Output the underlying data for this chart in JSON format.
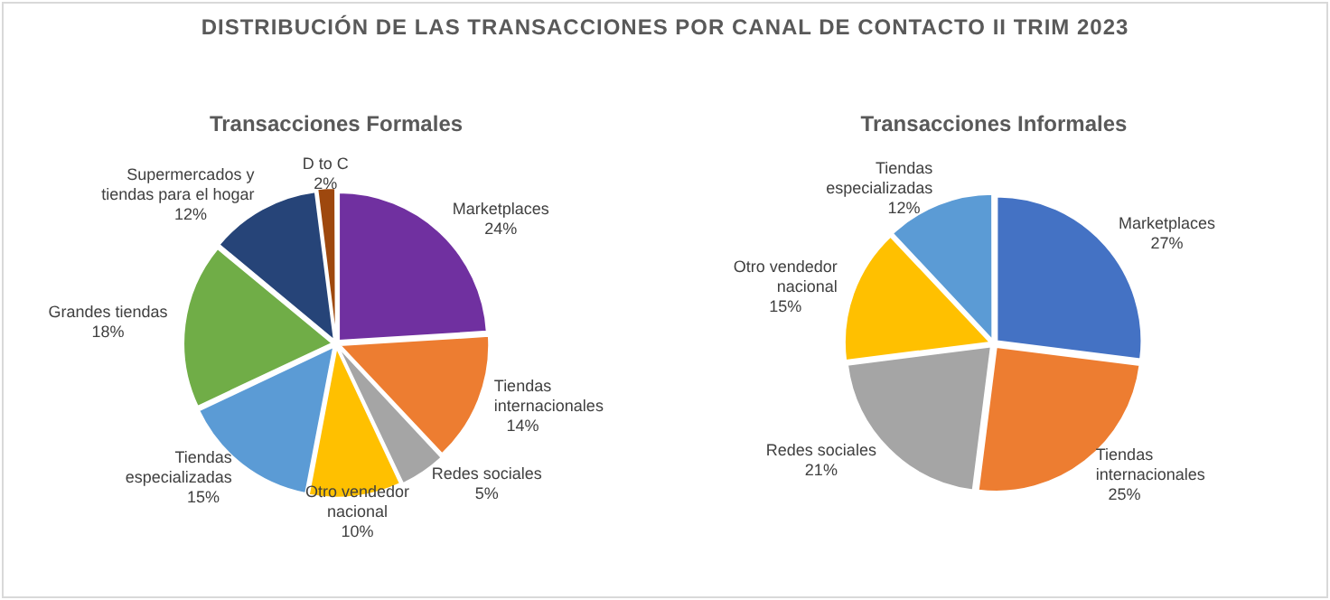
{
  "chart_data": [
    {
      "type": "pie",
      "title": "Transacciones Formales",
      "annotations": [
        "DISTRIBUCIÓN DE LAS TRANSACCIONES  POR CANAL DE CONTACTO II TRIM 2023"
      ],
      "categories": [
        "Marketplaces",
        "Tiendas internacionales",
        "Redes sociales",
        "Otro vendedor nacional",
        "Tiendas especializadas",
        "Grandes tiendas",
        "Supermercados y tiendas para el hogar",
        "D to C"
      ],
      "values": [
        24,
        14,
        5,
        10,
        15,
        18,
        12,
        2
      ],
      "value_labels": [
        "24%",
        "14%",
        "5%",
        "10%",
        "15%",
        "18%",
        "12%",
        "2%"
      ],
      "colors": [
        "#7030a0",
        "#ed7d31",
        "#a5a5a5",
        "#ffc000",
        "#5b9bd5",
        "#70ad47",
        "#264478",
        "#9e480e"
      ]
    },
    {
      "type": "pie",
      "title": "Transacciones Informales",
      "categories": [
        "Marketplaces",
        "Tiendas internacionales",
        "Redes sociales",
        "Otro vendedor nacional",
        "Tiendas especializadas"
      ],
      "values": [
        27,
        25,
        21,
        15,
        12
      ],
      "value_labels": [
        "27%",
        "25%",
        "21%",
        "15%",
        "12%"
      ],
      "colors": [
        "#4472c4",
        "#ed7d31",
        "#a5a5a5",
        "#ffc000",
        "#5b9bd5"
      ]
    }
  ]
}
